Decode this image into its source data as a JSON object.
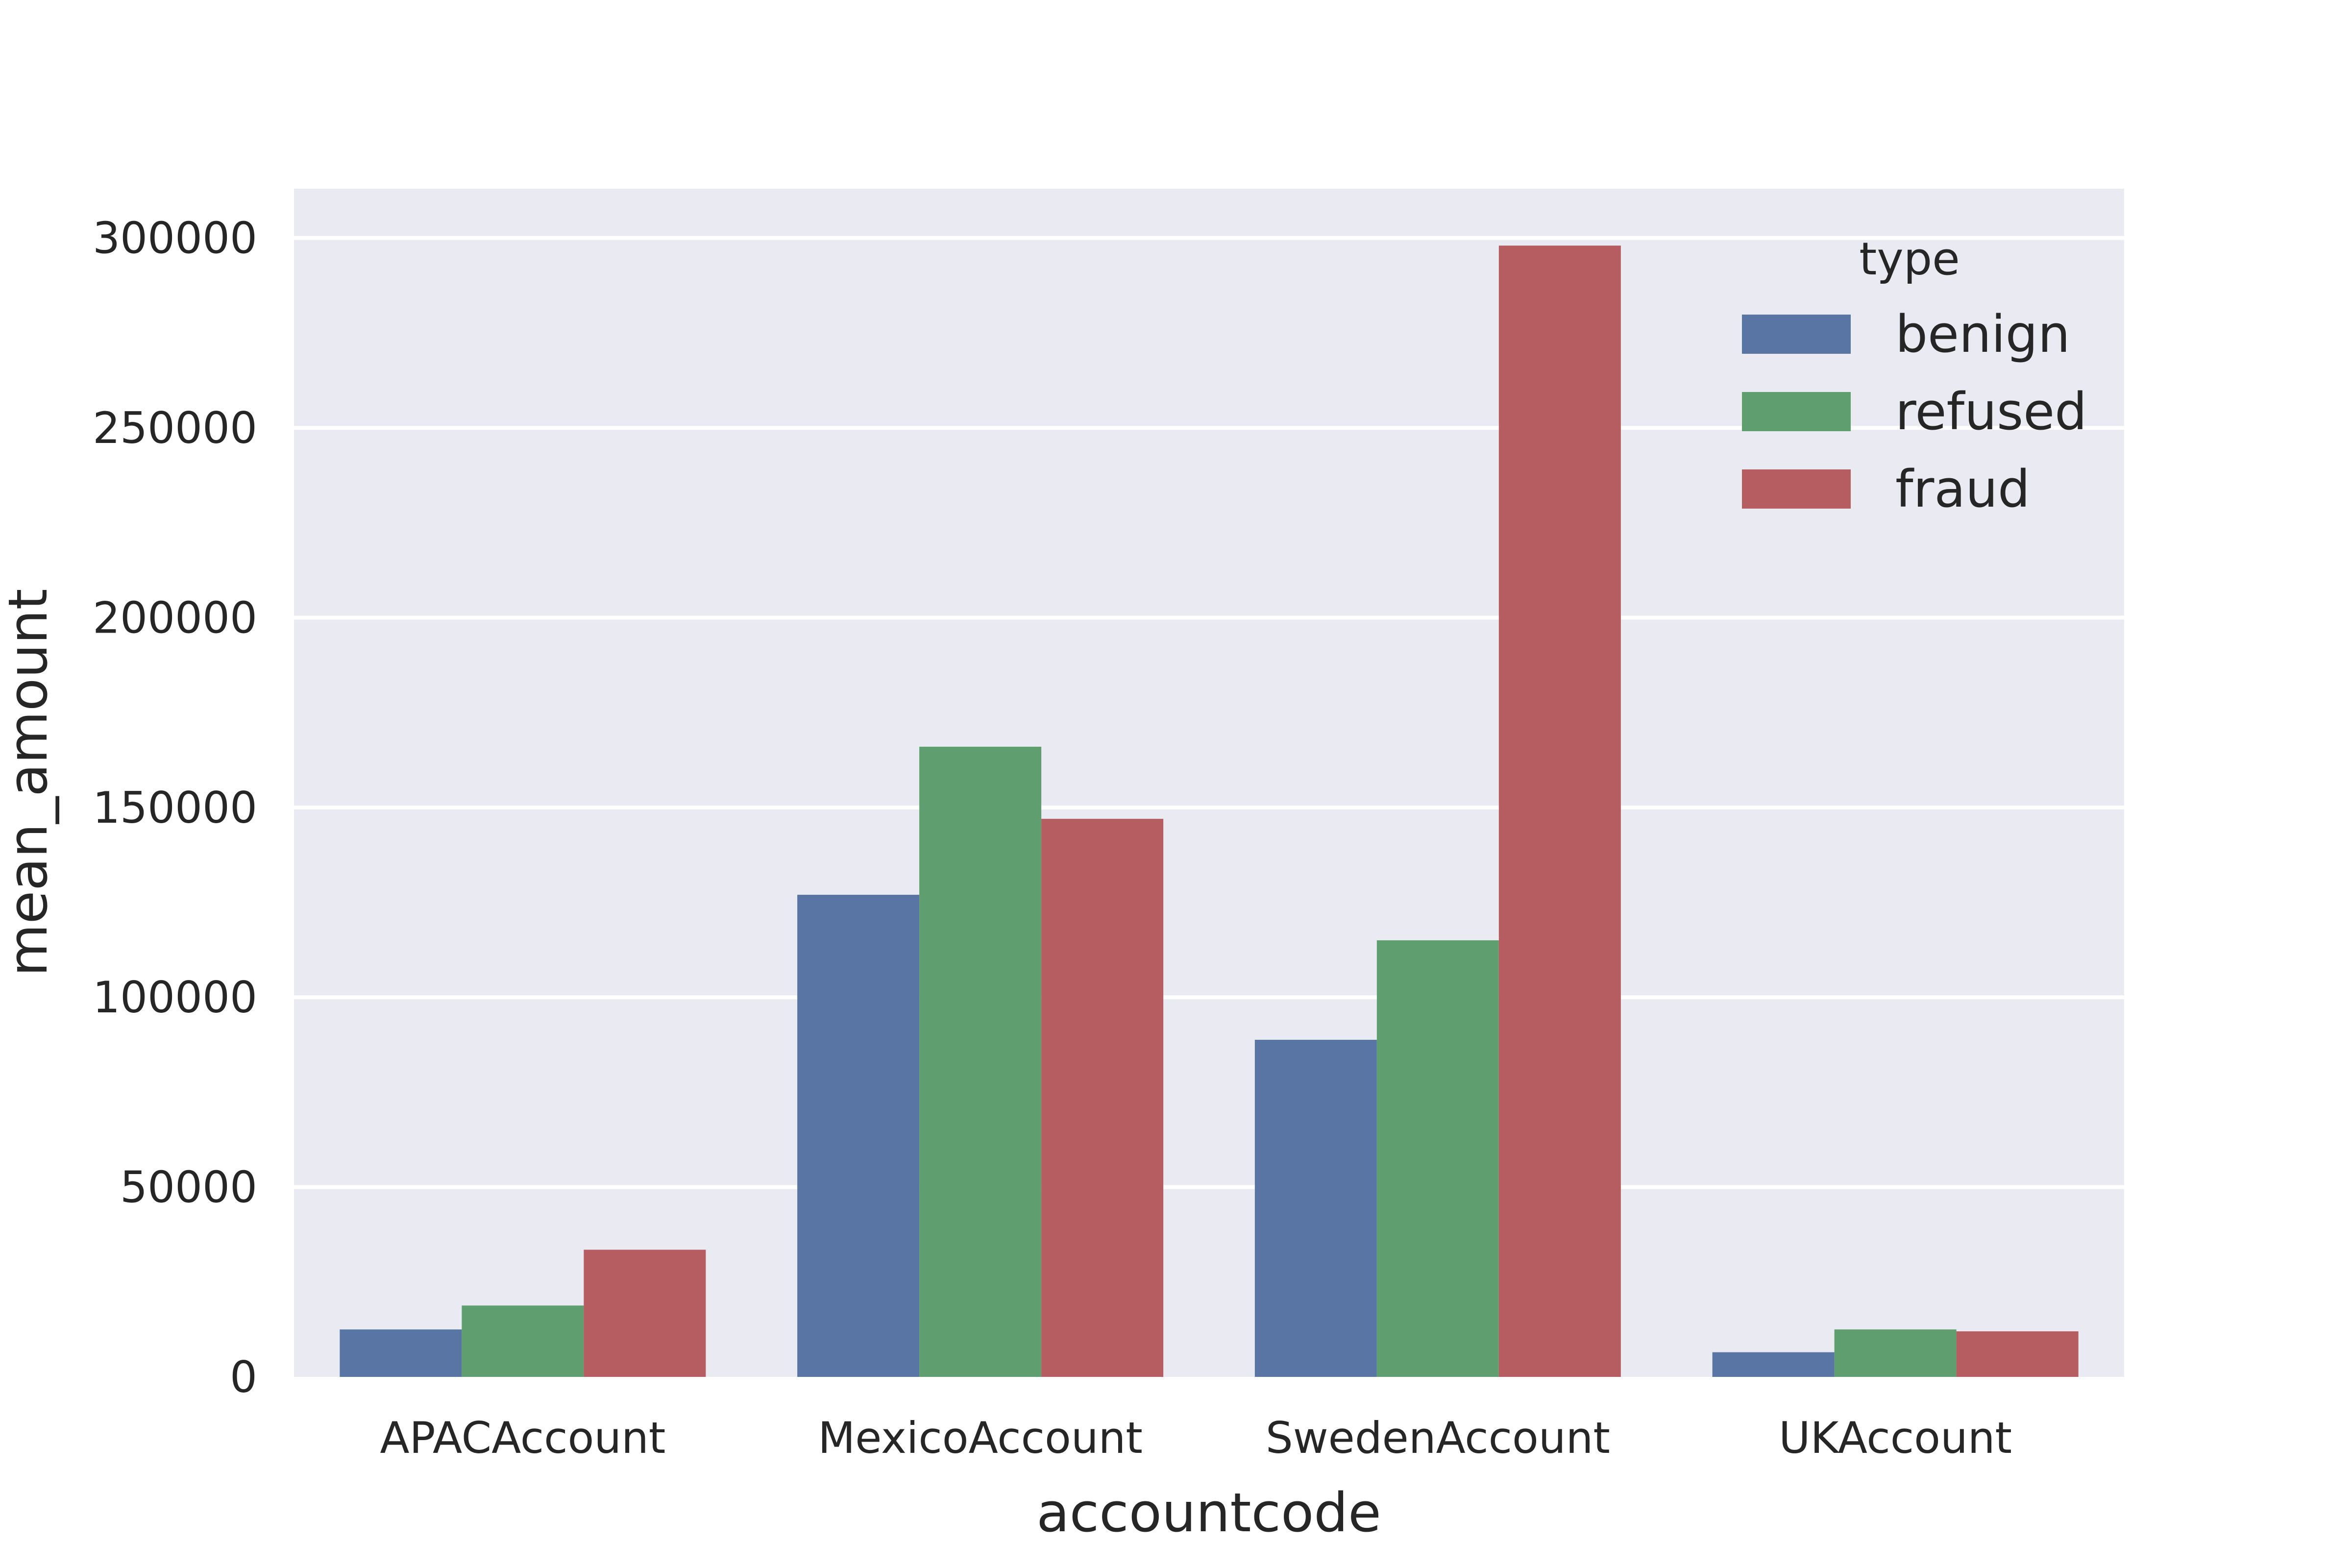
{
  "chart_data": {
    "type": "bar",
    "title": "",
    "xlabel": "accountcode",
    "ylabel": "mean_amount",
    "categories": [
      "APACAccount",
      "MexicoAccount",
      "SwedenAccount",
      "UKAccount"
    ],
    "series": [
      {
        "name": "benign",
        "color": "#5975a4",
        "values": [
          12500,
          127000,
          88800,
          6500
        ]
      },
      {
        "name": "refused",
        "color": "#5f9e6e",
        "values": [
          18800,
          166000,
          115000,
          12500
        ]
      },
      {
        "name": "fraud",
        "color": "#b55d60",
        "values": [
          33500,
          147000,
          298000,
          12000
        ]
      }
    ],
    "ylim": [
      0,
      313000
    ],
    "yticks": [
      0,
      50000,
      100000,
      150000,
      200000,
      250000,
      300000
    ],
    "ytick_labels": [
      "0",
      "50000",
      "100000",
      "150000",
      "200000",
      "250000",
      "300000"
    ],
    "legend": {
      "title": "type",
      "placement": "top-right"
    },
    "grid": true,
    "colors": {
      "plot_background": "#eaeaf2",
      "grid": "#ffffff",
      "text": "#262626"
    }
  }
}
